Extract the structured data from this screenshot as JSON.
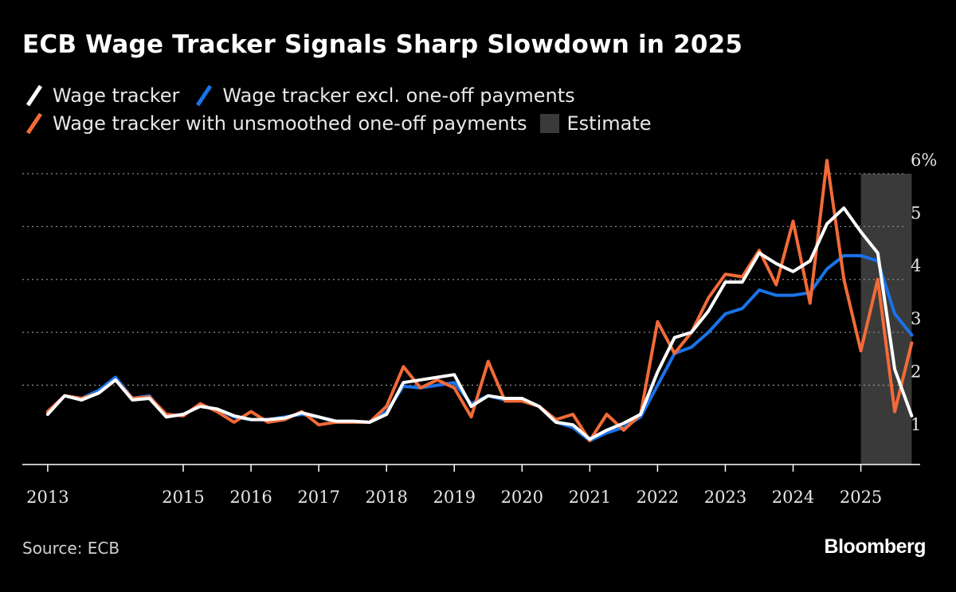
{
  "title": "ECB Wage Tracker Signals Sharp Slowdown in 2025",
  "legend": [
    {
      "label": "Wage tracker",
      "color": "#ffffff",
      "icon": "slash-line-icon"
    },
    {
      "label": "Wage tracker excl. one-off payments",
      "color": "#1a73e8",
      "icon": "slash-line-icon"
    },
    {
      "label": "Wage tracker with unsmoothed one-off payments",
      "color": "#f26b38",
      "icon": "slash-line-icon"
    },
    {
      "label": "Estimate",
      "color": "#3a3a3a",
      "icon": "square-swatch-icon"
    }
  ],
  "source": "Source: ECB",
  "brand": "Bloomberg",
  "chart_data": {
    "type": "line",
    "title": "ECB Wage Tracker Signals Sharp Slowdown in 2025",
    "xlabel": "",
    "ylabel": "",
    "xlim": [
      2012.625,
      2025.875
    ],
    "ylim": [
      0.5,
      6.0
    ],
    "x_ticks": [
      2013,
      2015,
      2016,
      2017,
      2018,
      2019,
      2020,
      2021,
      2022,
      2023,
      2024,
      2025
    ],
    "x_tick_labels": [
      "2013",
      "2015",
      "2016",
      "2017",
      "2018",
      "2019",
      "2020",
      "2021",
      "2022",
      "2023",
      "2024",
      "2025"
    ],
    "y_ticks": [
      1,
      2,
      3,
      4,
      5,
      6
    ],
    "y_tick_labels": [
      "1",
      "2",
      "3",
      "4",
      "5",
      "6%"
    ],
    "grid": true,
    "legend_position": "top-left",
    "shaded_region": {
      "label": "Estimate",
      "x_start": 2025.0,
      "x_end": 2025.75
    },
    "x": [
      2013.0,
      2013.125,
      2013.25,
      2013.375,
      2013.5,
      2013.625,
      2013.75,
      2013.875,
      2014.0,
      2014.25,
      2014.5,
      2014.75,
      2015.0,
      2015.25,
      2015.5,
      2015.75,
      2016.0,
      2016.25,
      2016.5,
      2016.75,
      2017.0,
      2017.25,
      2017.5,
      2017.75,
      2018.0,
      2018.25,
      2018.5,
      2018.75,
      2019.0,
      2019.25,
      2019.5,
      2019.75,
      2020.0,
      2020.25,
      2020.5,
      2020.75,
      2021.0,
      2021.25,
      2021.5,
      2021.75,
      2022.0,
      2022.25,
      2022.5,
      2022.75,
      2023.0,
      2023.25,
      2023.5,
      2023.75,
      2024.0,
      2024.25,
      2024.5,
      2024.75,
      2025.0,
      2025.25,
      2025.5,
      2025.75
    ],
    "series": [
      {
        "name": "Wage tracker excl. one-off payments",
        "color": "#1a73e8",
        "values": [
          1.5,
          null,
          1.8,
          null,
          1.75,
          null,
          1.9,
          null,
          2.15,
          1.75,
          1.8,
          1.4,
          1.45,
          1.6,
          1.55,
          1.4,
          1.35,
          1.35,
          1.4,
          1.45,
          1.4,
          1.3,
          1.3,
          1.3,
          1.5,
          1.98,
          1.95,
          2.0,
          2.05,
          1.65,
          1.8,
          1.72,
          1.72,
          1.6,
          1.3,
          1.2,
          0.95,
          1.1,
          1.2,
          1.4,
          2.0,
          2.6,
          2.72,
          3.0,
          3.35,
          3.45,
          3.8,
          3.7,
          3.7,
          3.75,
          4.2,
          4.45,
          4.45,
          4.35,
          3.35,
          2.95
        ]
      },
      {
        "name": "Wage tracker with unsmoothed one-off payments",
        "color": "#f26b38",
        "values": [
          1.5,
          null,
          1.8,
          null,
          1.75,
          null,
          1.85,
          null,
          2.1,
          1.75,
          1.78,
          1.45,
          1.42,
          1.65,
          1.5,
          1.3,
          1.5,
          1.3,
          1.35,
          1.5,
          1.25,
          1.3,
          1.3,
          1.3,
          1.6,
          2.35,
          1.95,
          2.1,
          1.95,
          1.4,
          2.45,
          1.7,
          1.7,
          1.6,
          1.35,
          1.45,
          0.95,
          1.45,
          1.15,
          1.45,
          3.2,
          2.6,
          3.0,
          3.65,
          4.1,
          4.05,
          4.55,
          3.9,
          5.1,
          3.55,
          6.25,
          4.0,
          2.65,
          4.0,
          1.5,
          2.8
        ]
      },
      {
        "name": "Wage tracker",
        "color": "#ffffff",
        "values": [
          1.45,
          null,
          1.8,
          null,
          1.72,
          null,
          1.85,
          null,
          2.1,
          1.72,
          1.75,
          1.4,
          1.45,
          1.6,
          1.55,
          1.42,
          1.35,
          1.35,
          1.38,
          1.48,
          1.4,
          1.32,
          1.32,
          1.3,
          1.45,
          2.05,
          2.1,
          2.15,
          2.2,
          1.6,
          1.8,
          1.75,
          1.75,
          1.6,
          1.3,
          1.25,
          0.98,
          1.15,
          1.28,
          1.45,
          2.25,
          2.9,
          3.0,
          3.4,
          3.95,
          3.95,
          4.5,
          4.3,
          4.15,
          4.35,
          5.05,
          5.35,
          4.9,
          4.5,
          2.3,
          1.42
        ]
      }
    ]
  }
}
